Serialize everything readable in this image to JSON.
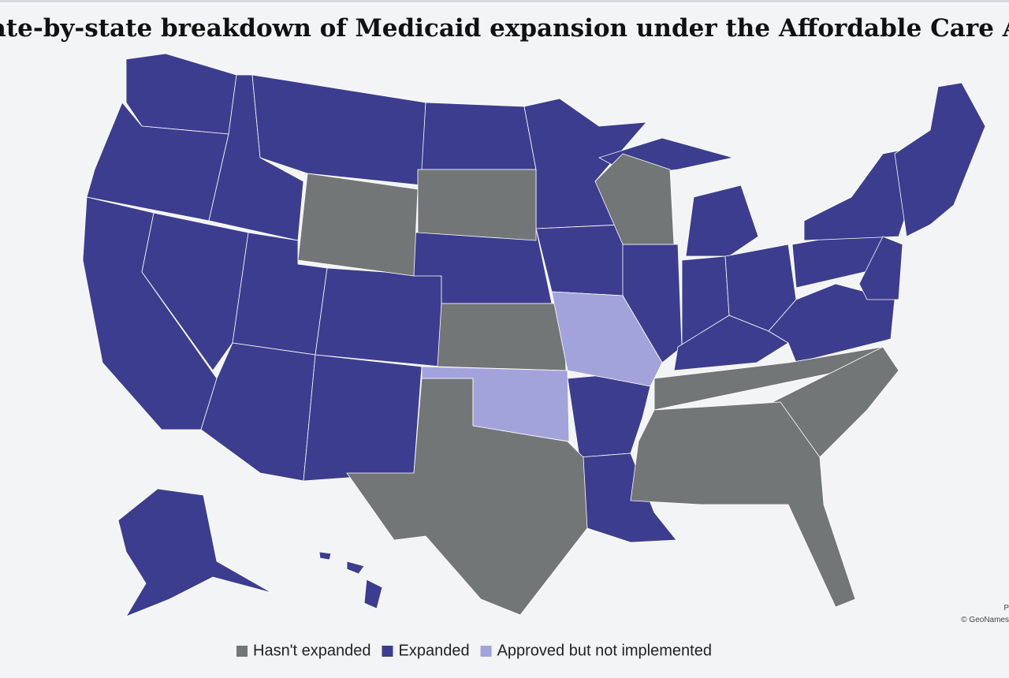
{
  "header": {
    "title": "State-by-state breakdown of Medicaid expansion under the Affordable Care Act"
  },
  "legend": {
    "items": [
      {
        "label": "Hasn't expanded",
        "color": "#727677"
      },
      {
        "label": "Expanded",
        "color": "#3d3d8f"
      },
      {
        "label": "Approved but not implemented",
        "color": "#a3a3dc"
      }
    ]
  },
  "attribution": [
    "P",
    "© GeoNames"
  ]
}
